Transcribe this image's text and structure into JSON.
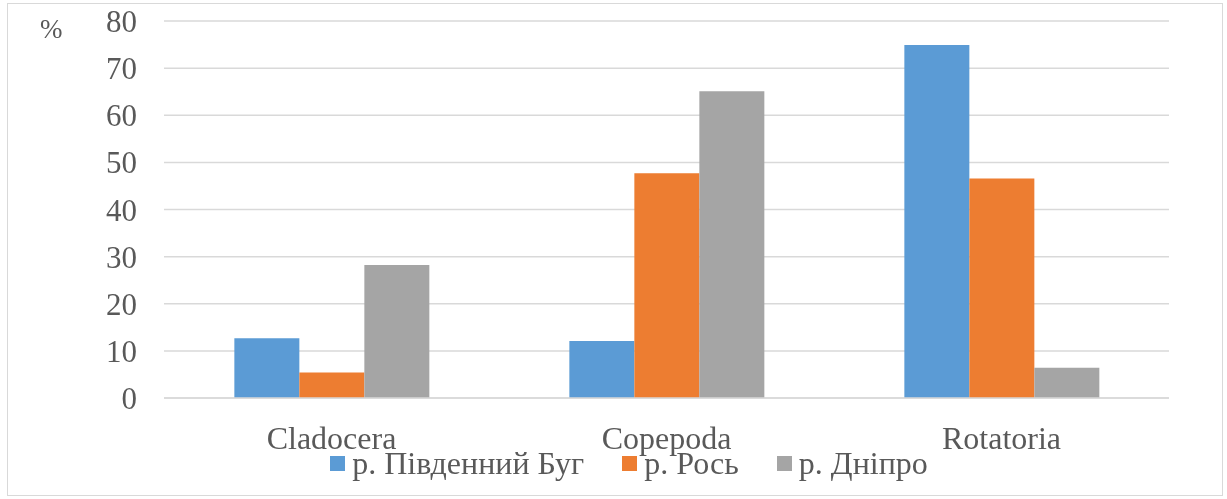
{
  "chart_data": {
    "type": "bar",
    "ylabel": "%",
    "categories": [
      "Cladocera",
      "Copepoda",
      "Rotatoria"
    ],
    "series": [
      {
        "name": "р. Південний Буг",
        "color": "#5b9bd5",
        "values": [
          12.7,
          12.1,
          74.9
        ]
      },
      {
        "name": "р. Рось",
        "color": "#ed7d31",
        "values": [
          5.4,
          47.7,
          46.6
        ]
      },
      {
        "name": "р. Дніпро",
        "color": "#a5a5a5",
        "values": [
          28.2,
          65.1,
          6.4
        ]
      }
    ],
    "ylim": [
      0,
      80
    ],
    "yticks": [
      0,
      10,
      20,
      30,
      40,
      50,
      60,
      70,
      80
    ],
    "grid": "y",
    "legend": "bottom"
  }
}
